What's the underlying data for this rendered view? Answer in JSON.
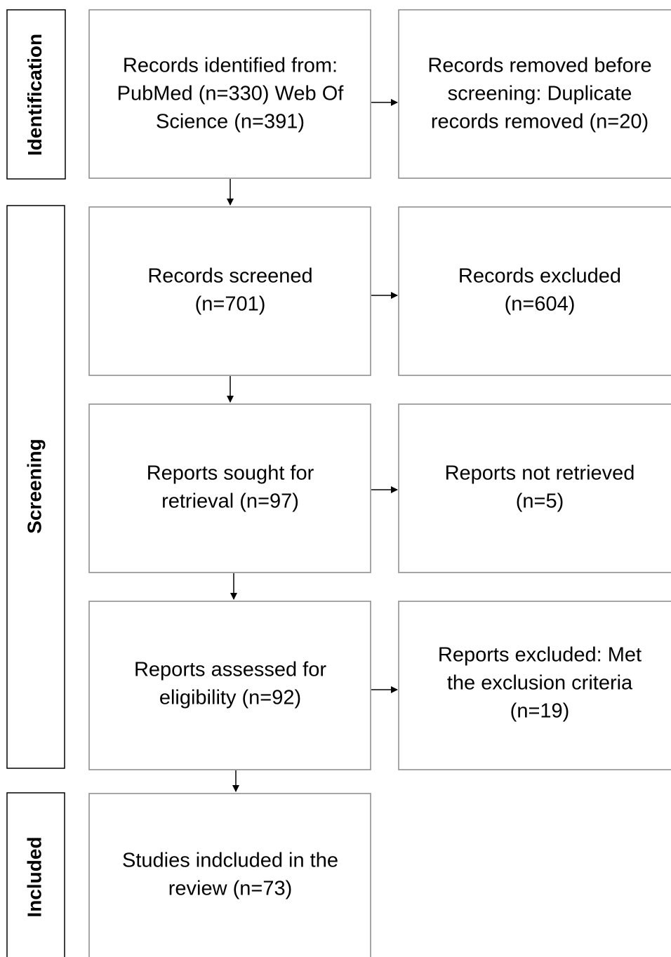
{
  "stages": [
    {
      "label": "Identification"
    },
    {
      "label": "Screening"
    },
    {
      "label": "Included"
    }
  ],
  "boxes": [
    {
      "lines": [
        "Records identified from:",
        "PubMed (n=330) Web Of",
        "Science (n=391)"
      ]
    },
    {
      "lines": [
        "Records removed before",
        "screening: Duplicate",
        "records removed (n=20)"
      ]
    },
    {
      "lines": [
        "Records screened",
        "(n=701)"
      ]
    },
    {
      "lines": [
        "Records excluded",
        "(n=604)"
      ]
    },
    {
      "lines": [
        "Reports sought for",
        "retrieval (n=97)"
      ]
    },
    {
      "lines": [
        "Reports not retrieved",
        "(n=5)"
      ]
    },
    {
      "lines": [
        "Reports assessed for",
        "eligibility (n=92)"
      ]
    },
    {
      "lines": [
        "Reports excluded: Met",
        "the exclusion criteria",
        "(n=19)"
      ]
    },
    {
      "lines": [
        "Studies indcluded in the",
        "review (n=73)"
      ]
    }
  ]
}
